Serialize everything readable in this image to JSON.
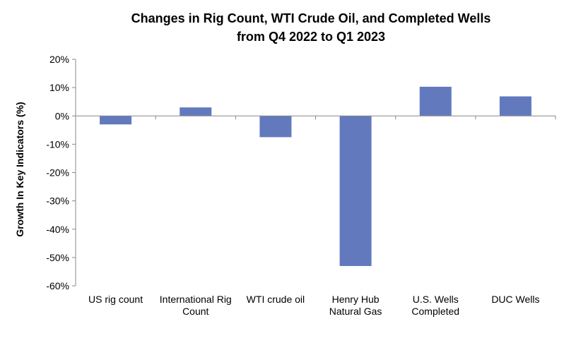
{
  "chart_data": {
    "type": "bar",
    "title_lines": [
      "Changes in Rig Count, WTI Crude Oil, and Completed Wells",
      "from Q4 2022 to Q1 2023"
    ],
    "ylabel": "Growth In Key Indicators (%)",
    "xlabel": "",
    "categories": [
      [
        "US rig count"
      ],
      [
        "International Rig",
        "Count"
      ],
      [
        "WTI crude oil"
      ],
      [
        "Henry Hub",
        "Natural Gas"
      ],
      [
        "U.S. Wells",
        "Completed"
      ],
      [
        "DUC Wells"
      ]
    ],
    "values": [
      -3,
      3,
      -7.5,
      -53,
      10.3,
      6.9
    ],
    "ylim": [
      -60,
      20
    ],
    "yticks": [
      20,
      10,
      0,
      -10,
      -20,
      -30,
      -40,
      -50,
      -60
    ],
    "ytick_labels": [
      "20%",
      "10%",
      "0%",
      "-10%",
      "-20%",
      "-30%",
      "-40%",
      "-50%",
      "-60%"
    ],
    "bar_color": "#6279BE",
    "grid": false,
    "legend": "none"
  }
}
